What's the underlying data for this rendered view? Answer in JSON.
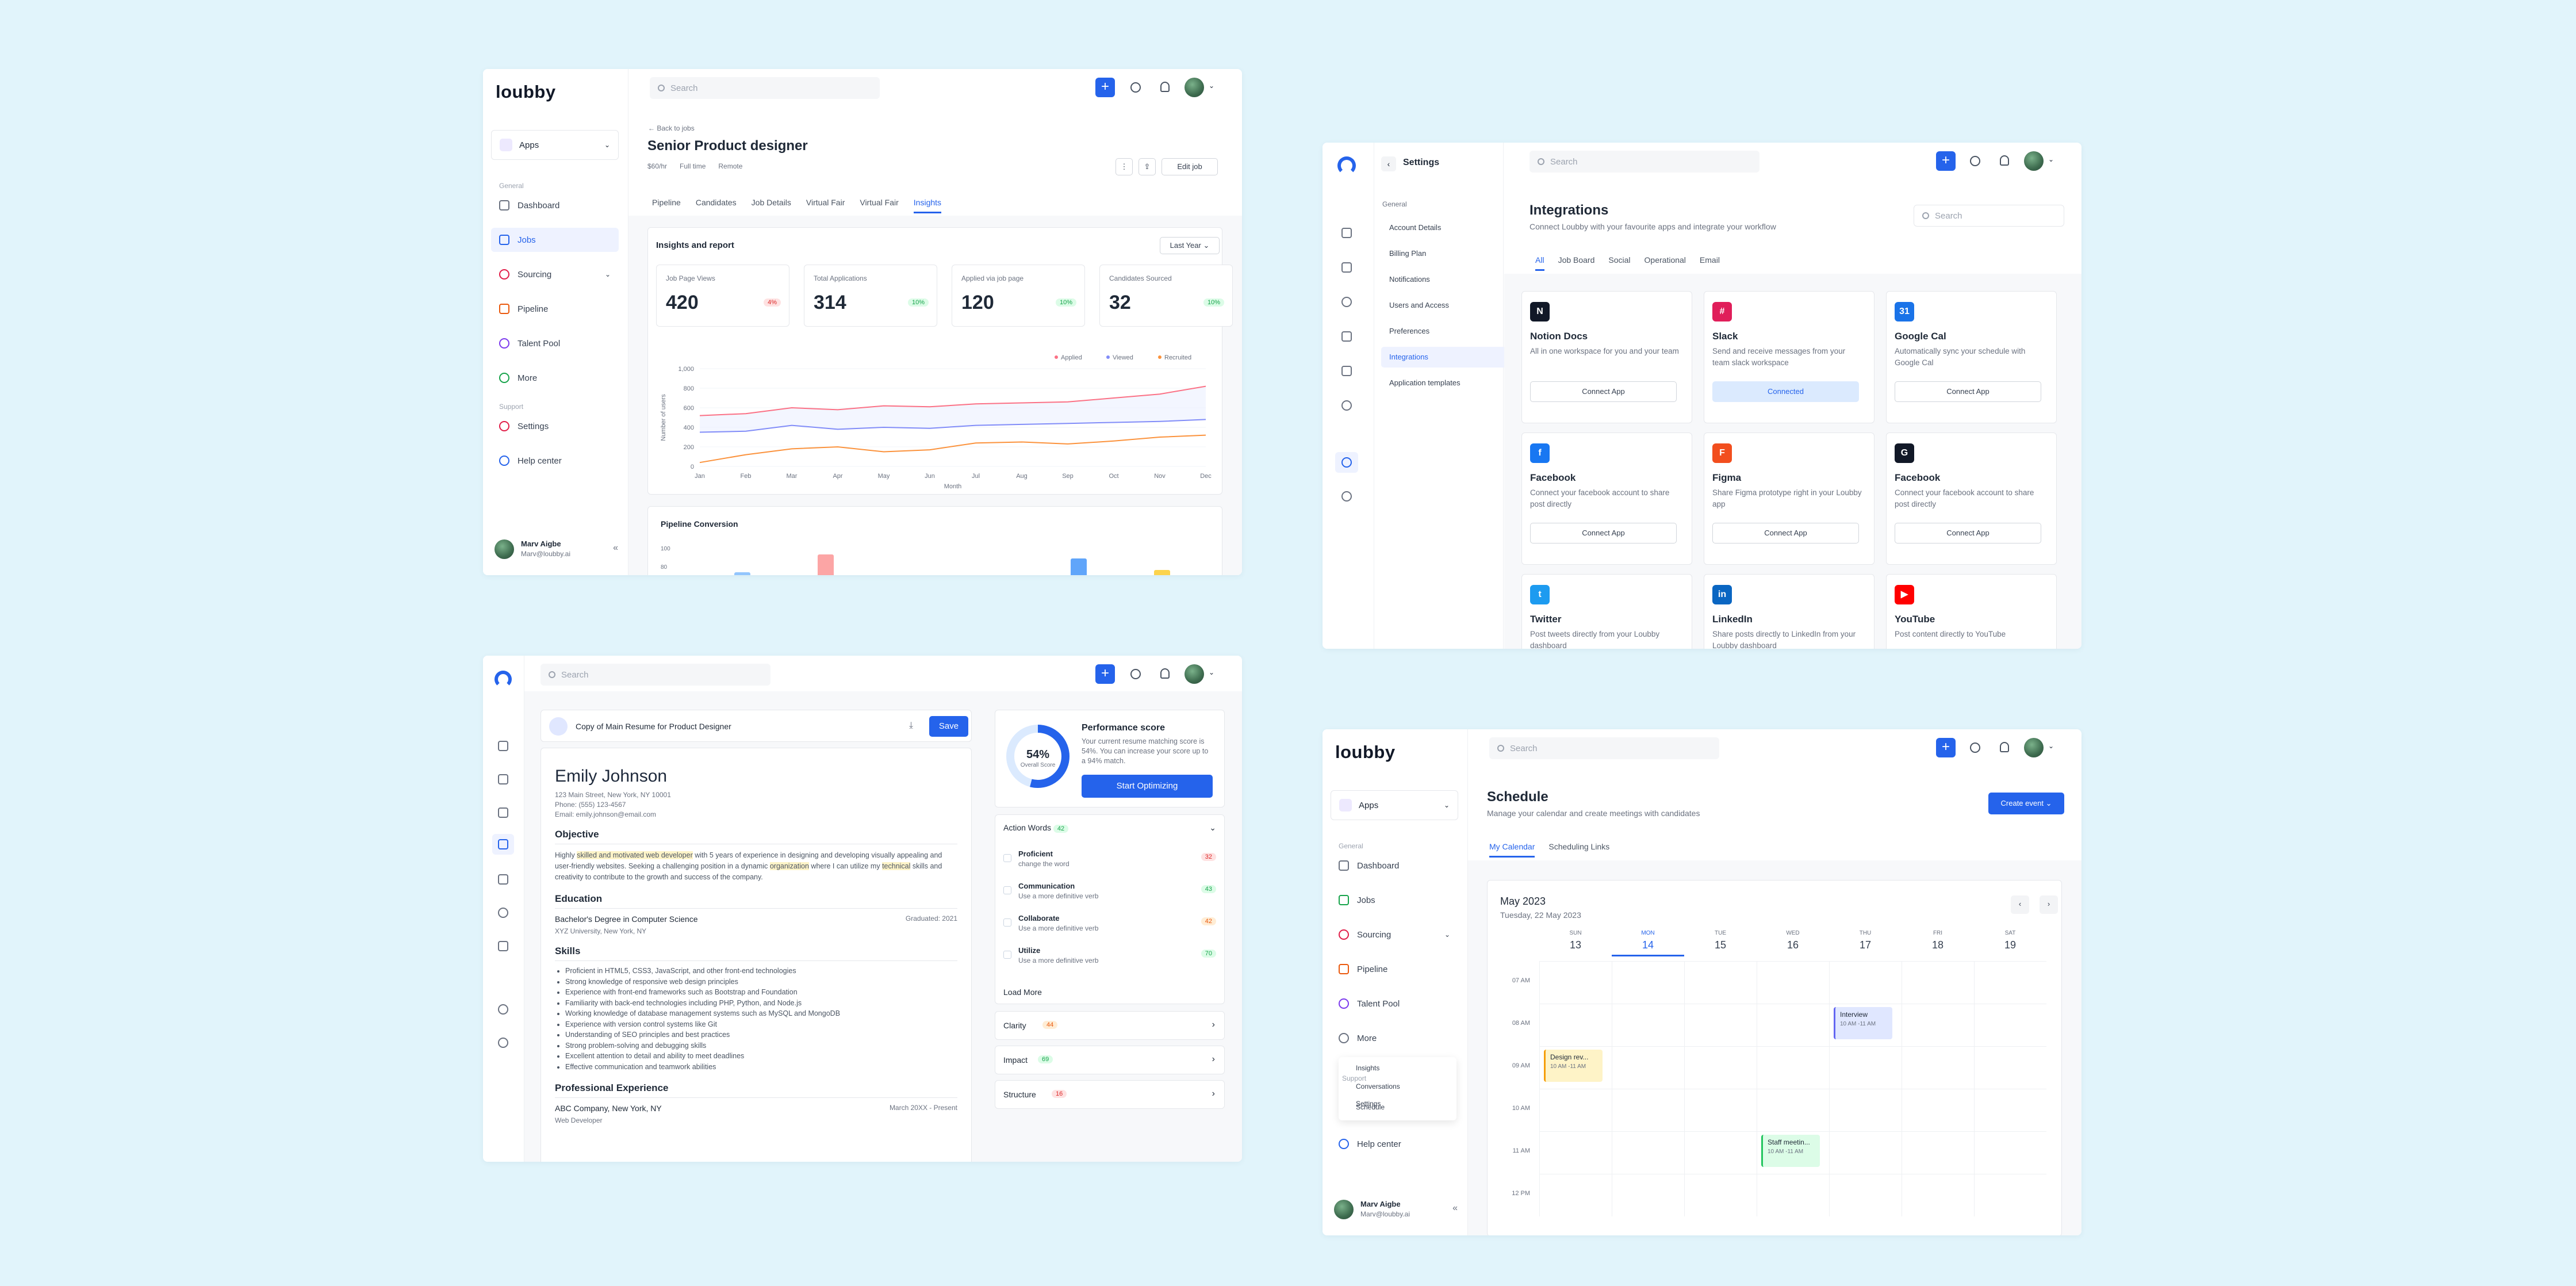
{
  "brand": {
    "name": "loubby",
    "accent": "#2563eb"
  },
  "common": {
    "search": "Search",
    "plus": "+",
    "user_name": "Marv Aigbe",
    "user_email": "Marv@loubby.ai",
    "apps": "Apps",
    "general": "General",
    "support": "Support"
  },
  "jobs_panel": {
    "nav": [
      "Dashboard",
      "Jobs",
      "Sourcing",
      "Pipeline",
      "Talent Pool",
      "More"
    ],
    "support_nav": [
      "Settings",
      "Help center"
    ],
    "back": "Back to jobs",
    "title": "Senior Product designer",
    "meta": [
      "$60/hr",
      "Full time",
      "Remote"
    ],
    "edit": "Edit job",
    "tabs": [
      "Pipeline",
      "Candidates",
      "Job Details",
      "Virtual Fair",
      "Virtual Fair",
      "Insights"
    ],
    "section": "Insights and report",
    "period": "Last Year",
    "stats": [
      {
        "label": "Job Page Views",
        "value": "420",
        "change": "4%",
        "trend": "down"
      },
      {
        "label": "Total Applications",
        "value": "314",
        "change": "10%",
        "trend": "up"
      },
      {
        "label": "Applied via job page",
        "value": "120",
        "change": "10%",
        "trend": "up"
      },
      {
        "label": "Candidates Sourced",
        "value": "32",
        "change": "10%",
        "trend": "up"
      }
    ],
    "chart_data": {
      "type": "line",
      "title": "",
      "xlabel": "Month",
      "ylabel": "Number of users",
      "categories": [
        "Jan",
        "Feb",
        "Mar",
        "Apr",
        "May",
        "Jun",
        "Jul",
        "Aug",
        "Sep",
        "Oct",
        "Nov",
        "Dec"
      ],
      "yticks": [
        "1,000",
        "800",
        "600",
        "400",
        "200",
        "0"
      ],
      "ylim": [
        0,
        1000
      ],
      "series": [
        {
          "name": "Applied",
          "color": "#fb7185",
          "values": [
            520,
            540,
            600,
            580,
            620,
            610,
            640,
            650,
            660,
            700,
            740,
            820
          ]
        },
        {
          "name": "Viewed",
          "color": "#818cf8",
          "values": [
            350,
            360,
            420,
            380,
            400,
            390,
            420,
            430,
            440,
            450,
            460,
            480
          ]
        },
        {
          "name": "Recruited",
          "color": "#fb923c",
          "values": [
            40,
            120,
            180,
            200,
            150,
            170,
            240,
            250,
            230,
            260,
            300,
            320
          ]
        }
      ]
    },
    "pipeline": {
      "title": "Pipeline Conversion",
      "yticks": [
        "100",
        "80"
      ]
    }
  },
  "settings_panel": {
    "title": "Settings",
    "general": "General",
    "menu": [
      "Account Details",
      "Billing Plan",
      "Notifications",
      "Users and Access",
      "Preferences",
      "Integrations",
      "Application templates"
    ],
    "heading": "Integrations",
    "sub": "Connect Loubby with your favourite apps and integrate your workflow",
    "tabs": [
      "All",
      "Job Board",
      "Social",
      "Operational",
      "Email"
    ],
    "apps": [
      {
        "name": "Notion Docs",
        "desc": "All in one workspace for you and your team",
        "btn": "Connect App",
        "color": "#111827",
        "glyph": "N"
      },
      {
        "name": "Slack",
        "desc": "Send and receive messages from your team slack workspace",
        "btn": "Connected",
        "color": "#e01e5a",
        "glyph": "#"
      },
      {
        "name": "Google Cal",
        "desc": "Automatically sync your schedule with Google Cal",
        "btn": "Connect App",
        "color": "#1a73e8",
        "glyph": "31"
      },
      {
        "name": "Facebook",
        "desc": "Connect your facebook account to share post directly",
        "btn": "Connect App",
        "color": "#1877f2",
        "glyph": "f"
      },
      {
        "name": "Figma",
        "desc": "Share Figma prototype right in your Loubby app",
        "btn": "Connect App",
        "color": "#f24e1e",
        "glyph": "F"
      },
      {
        "name": "Facebook",
        "desc": "Connect your facebook account to share post directly",
        "btn": "Connect App",
        "color": "#111827",
        "glyph": "G"
      },
      {
        "name": "Twitter",
        "desc": "Post tweets directly from your Loubby dashboard",
        "btn": "",
        "color": "#1d9bf0",
        "glyph": "t"
      },
      {
        "name": "LinkedIn",
        "desc": "Share posts directly to LinkedIn from your Loubby dashboard",
        "btn": "",
        "color": "#0a66c2",
        "glyph": "in"
      },
      {
        "name": "YouTube",
        "desc": "Post content directly to YouTube",
        "btn": "",
        "color": "#ff0000",
        "glyph": "▶"
      }
    ]
  },
  "resume_panel": {
    "file": "Copy of Main Resume for Product Designer",
    "save": "Save",
    "name": "Emily Johnson",
    "address": "123 Main Street, New York, NY 10001",
    "phone": "Phone: (555) 123-4567",
    "email": "Email: emily.johnson@email.com",
    "objective_h": "Objective",
    "objective": "Highly skilled and motivated web developer with 5 years of experience in designing and developing visually appealing and user-friendly websites. Seeking a challenging position in a dynamic organization where I can utilize my technical skills and creativity to contribute to the growth and success of the company.",
    "education_h": "Education",
    "degree": "Bachelor's Degree in Computer Science",
    "graduated": "Graduated: 2021",
    "school": "XYZ University, New York, NY",
    "skills_h": "Skills",
    "skills": [
      "Proficient in HTML5, CSS3, JavaScript, and other front-end technologies",
      "Strong knowledge of responsive web design principles",
      "Experience with front-end frameworks such as Bootstrap and Foundation",
      "Familiarity with back-end technologies including PHP, Python, and Node.js",
      "Working knowledge of database management systems such as MySQL and MongoDB",
      "Experience with version control systems like Git",
      "Understanding of SEO principles and best practices",
      "Strong problem-solving and debugging skills",
      "Excellent attention to detail and ability to meet deadlines",
      "Effective communication and teamwork abilities"
    ],
    "exp_h": "Professional Experience",
    "company": "ABC Company, New York, NY",
    "dates": "March 20XX - Present",
    "role": "Web Developer",
    "score": "54%",
    "score_label": "Overall Score",
    "perf_title": "Performance score",
    "perf_desc": "Your current resume matching score is 54%. You can increase your score up to a 94% match.",
    "optimize": "Start Optimizing",
    "action_words": "Action Words",
    "action_count": "42",
    "actions": [
      {
        "word": "Proficient",
        "hint": "change the word",
        "n": "32",
        "cls": "r"
      },
      {
        "word": "Communication",
        "hint": "Use a more definitive verb",
        "n": "43",
        "cls": "g"
      },
      {
        "word": "Collaborate",
        "hint": "Use a more definitive verb",
        "n": "42",
        "cls": "o"
      },
      {
        "word": "Utilize",
        "hint": "Use a more definitive verb",
        "n": "70",
        "cls": "g"
      }
    ],
    "load_more": "Load More",
    "sections": [
      {
        "name": "Clarity",
        "n": "44",
        "cls": "o"
      },
      {
        "name": "Impact",
        "n": "69",
        "cls": "g"
      },
      {
        "name": "Structure",
        "n": "16",
        "cls": "r"
      }
    ]
  },
  "schedule_panel": {
    "nav": [
      "Dashboard",
      "Jobs",
      "Sourcing",
      "Pipeline",
      "Talent Pool",
      "More"
    ],
    "submenu": [
      "Insights",
      "Conversations",
      "Schedule"
    ],
    "overlap": [
      "Support",
      "Settings"
    ],
    "help": "Help center",
    "title": "Schedule",
    "sub": "Manage your calendar and create meetings with candidates",
    "create": "Create event",
    "tabs": [
      "My Calendar",
      "Scheduling Links"
    ],
    "month": "May 2023",
    "date": "Tuesday, 22 May 2023",
    "days": [
      {
        "d": "SUN",
        "n": "13"
      },
      {
        "d": "MON",
        "n": "14"
      },
      {
        "d": "TUE",
        "n": "15"
      },
      {
        "d": "WED",
        "n": "16"
      },
      {
        "d": "THU",
        "n": "17"
      },
      {
        "d": "FRI",
        "n": "18"
      },
      {
        "d": "SAT",
        "n": "19"
      }
    ],
    "hours": [
      "07 AM",
      "08 AM",
      "09 AM",
      "10 AM",
      "11 AM",
      "12 PM"
    ],
    "events": [
      {
        "t": "Interview",
        "time": "10 AM -11 AM",
        "color": "#e0e7ff",
        "bar": "#6366f1"
      },
      {
        "t": "Design rev...",
        "time": "10 AM -11 AM",
        "color": "#fef3c7",
        "bar": "#f59e0b"
      },
      {
        "t": "Staff meetin...",
        "time": "10 AM -11 AM",
        "color": "#dcfce7",
        "bar": "#22c55e"
      }
    ]
  }
}
